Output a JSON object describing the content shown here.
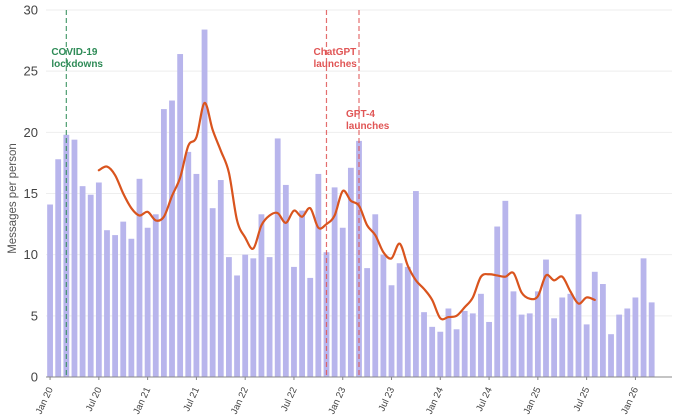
{
  "chart_data": {
    "type": "bar",
    "ylabel": "Messages per person",
    "ylim": [
      0,
      30
    ],
    "yticks": [
      0,
      5,
      10,
      15,
      20,
      25,
      30
    ],
    "grid": true,
    "x_start_month": "2020-01",
    "x_end_month": "2026-05",
    "xtick_labels": [
      "Jan 20",
      "Jul 20",
      "Jan 21",
      "Jul 21",
      "Jan 22",
      "Jul 22",
      "Jan 23",
      "Jul 23",
      "Jan 24",
      "Jul 24",
      "Jan 25",
      "Jul 25",
      "Jan 26"
    ],
    "colors": {
      "bars": "#b8b5ec",
      "line": "#d9541e",
      "covid": "#2e8b57",
      "gpt": "#e05555",
      "grid": "#eeeeee"
    },
    "series": [
      {
        "type": "bar",
        "values": [
          14.1,
          17.8,
          19.8,
          19.4,
          15.6,
          14.9,
          15.9,
          12.0,
          11.6,
          12.7,
          11.3,
          16.2,
          12.2,
          13.3,
          21.9,
          22.6,
          26.4,
          18.4,
          16.6,
          28.4,
          13.8,
          16.1,
          9.8,
          8.3,
          10.0,
          9.7,
          13.3,
          9.8,
          19.5,
          15.7,
          9.0,
          13.6,
          8.1,
          16.6,
          10.2,
          15.5,
          12.2,
          17.1,
          19.3,
          8.9,
          13.3,
          10.0,
          7.5,
          9.3,
          9.0,
          15.2,
          5.3,
          4.1,
          3.7,
          5.6,
          3.9,
          5.4,
          5.2,
          6.8,
          4.5,
          12.3,
          14.4,
          7.0,
          5.1,
          5.2,
          7.0,
          9.6,
          4.8,
          6.5,
          6.8,
          13.3,
          4.3,
          8.6,
          7.6,
          3.5,
          5.1,
          5.6,
          6.5,
          9.7,
          6.1
        ]
      },
      {
        "type": "line",
        "start_month": "2020-07",
        "values": [
          16.9,
          17.2,
          16.5,
          15.0,
          13.8,
          13.2,
          13.5,
          12.8,
          13.1,
          14.8,
          16.3,
          18.9,
          19.6,
          22.4,
          20.2,
          18.5,
          16.7,
          12.8,
          11.4,
          10.5,
          12.4,
          13.2,
          13.4,
          12.6,
          13.6,
          13.1,
          13.8,
          12.2,
          12.5,
          13.2,
          15.2,
          14.4,
          14.0,
          12.4,
          11.6,
          10.2,
          9.7,
          10.9,
          9.1,
          7.9,
          7.2,
          6.3,
          4.8,
          4.9,
          5.0,
          5.7,
          6.5,
          8.2,
          8.4,
          8.3,
          8.2,
          8.5,
          6.9,
          6.4,
          6.6,
          8.3,
          7.9,
          8.2,
          7.0,
          6.0,
          6.5,
          6.3
        ]
      }
    ],
    "annotations": [
      {
        "text": "COVID-19\nlockdowns",
        "month": "2020-03",
        "color_key": "covid"
      },
      {
        "text": "ChatGPT\nlaunches",
        "month": "2022-11",
        "color_key": "gpt"
      },
      {
        "text": "GPT-4\nlaunches",
        "month": "2023-03",
        "color_key": "gpt"
      }
    ]
  }
}
